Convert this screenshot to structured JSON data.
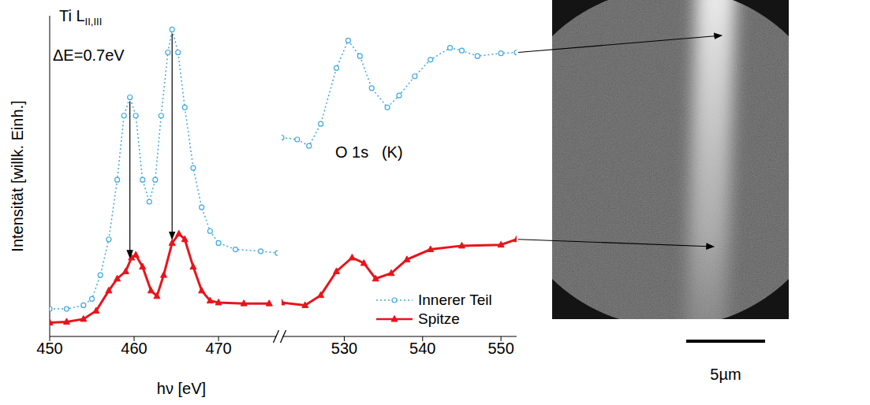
{
  "chart_data": {
    "type": "line",
    "xlabel": "hν [eV]",
    "ylabel": "Intensität [willk. Einh.]",
    "ylim": [
      0,
      3.5
    ],
    "yticks": [
      0.5,
      1.5,
      2.5,
      3.5
    ],
    "tick_labels": "x",
    "legend": "lower right",
    "series": [
      {
        "name": "Innerer Teil",
        "color": "#40a8e0",
        "marker": "circle",
        "line_style": "dotted"
      },
      {
        "name": "Spitze",
        "color": "#e8141c",
        "marker": "triangle",
        "line_style": "solid"
      }
    ],
    "segments": [
      {
        "xlim": [
          450,
          477
        ],
        "xticks": [
          450,
          460,
          470
        ],
        "annotations": [
          {
            "text": "Ti L",
            "subscript": "II,III"
          },
          {
            "text": "ΔE=0.7eV"
          }
        ],
        "data": [
          {
            "x": [
              450,
              452,
              454,
              455,
              456,
              457,
              458,
              458.8,
              459.5,
              460.2,
              461,
              461.8,
              462.5,
              463.2,
              464,
              464.5,
              465.2,
              466,
              467,
              468,
              469,
              470,
              472,
              475,
              477
            ],
            "values": [
              0.3,
              0.3,
              0.34,
              0.41,
              0.67,
              1.06,
              1.71,
              2.41,
              2.61,
              2.41,
              1.71,
              1.47,
              1.71,
              2.41,
              3.1,
              3.35,
              3.1,
              2.5,
              1.84,
              1.41,
              1.15,
              1.02,
              0.95,
              0.93,
              0.91
            ]
          },
          {
            "x": [
              450,
              452,
              454,
              455.5,
              457,
              458,
              459,
              459.7,
              460.2,
              461,
              462,
              462.7,
              463.5,
              464.5,
              465.3,
              466,
              467,
              468,
              469,
              470,
              473,
              476
            ],
            "values": [
              0.15,
              0.16,
              0.19,
              0.28,
              0.5,
              0.63,
              0.71,
              0.86,
              0.89,
              0.76,
              0.5,
              0.44,
              0.67,
              1.02,
              1.12,
              1.06,
              0.76,
              0.5,
              0.39,
              0.37,
              0.36,
              0.36
            ]
          }
        ]
      },
      {
        "xlim": [
          522,
          552
        ],
        "xticks": [
          530,
          540,
          550
        ],
        "annotations": [
          {
            "text": "O 1s   (K)"
          }
        ],
        "data": [
          {
            "x": [
              522,
              524,
              525.5,
              527,
              529,
              530.5,
              532,
              533.5,
              535.5,
              537,
              539,
              541,
              543.5,
              545,
              547,
              550,
              552
            ],
            "values": [
              2.17,
              2.15,
              2.08,
              2.32,
              2.93,
              3.23,
              3.06,
              2.71,
              2.5,
              2.63,
              2.84,
              3.02,
              3.15,
              3.12,
              3.06,
              3.09,
              3.1
            ]
          },
          {
            "x": [
              522,
              525,
              527,
              529,
              531,
              532.5,
              534,
              536,
              538,
              541,
              545,
              550,
              552
            ],
            "values": [
              0.37,
              0.34,
              0.45,
              0.71,
              0.86,
              0.8,
              0.63,
              0.69,
              0.84,
              0.95,
              0.99,
              1.0,
              1.06
            ]
          }
        ]
      }
    ]
  },
  "image": {
    "scale_bar": "5µm"
  }
}
